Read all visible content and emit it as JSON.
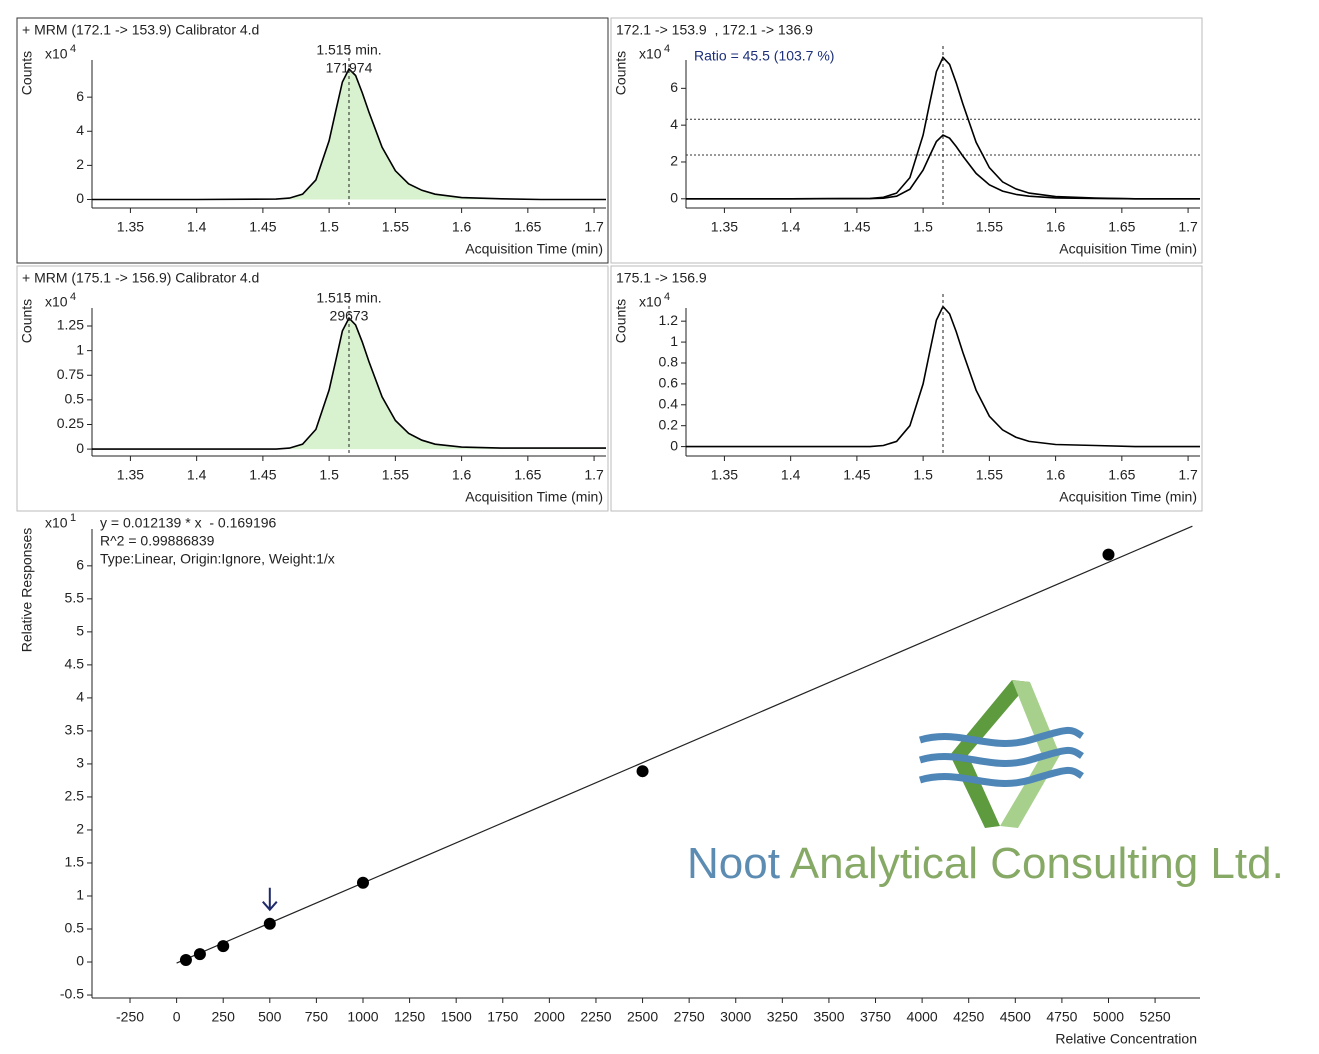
{
  "chart_data": [
    {
      "type": "line",
      "title": "+ MRM (172.1 -> 153.9) Calibrator 4.d",
      "y_label": "Counts",
      "y_multiplier_base": "x10",
      "y_multiplier_exponent": 4,
      "x_label": "Acquisition Time (min)",
      "xlim": [
        1.321,
        1.709
      ],
      "xticks": [
        1.35,
        1.4,
        1.45,
        1.5,
        1.55,
        1.6,
        1.65,
        1.7
      ],
      "ylim": [
        -0.5,
        9
      ],
      "yticks": [
        0,
        2,
        4,
        6
      ],
      "x": [
        1.321,
        1.4,
        1.46,
        1.47,
        1.48,
        1.49,
        1.5,
        1.505,
        1.51,
        1.515,
        1.52,
        1.525,
        1.53,
        1.54,
        1.55,
        1.56,
        1.57,
        1.58,
        1.6,
        1.63,
        1.66,
        1.709
      ],
      "series": [
        {
          "color": "#000000",
          "fill": "#d8f1cf",
          "values": [
            0,
            0,
            0.02,
            0.08,
            0.31,
            1.15,
            3.44,
            5.2,
            6.89,
            7.65,
            7.27,
            6.27,
            5.13,
            3.06,
            1.68,
            0.92,
            0.54,
            0.31,
            0.11,
            0.04,
            0,
            0
          ]
        }
      ],
      "rt": 1.515,
      "peak_label": "1.515 min.",
      "peak_area": 171974
    },
    {
      "type": "line",
      "title": "172.1 -> 153.9  , 172.1 -> 136.9",
      "y_label": "Counts",
      "y_multiplier_base": "x10",
      "y_multiplier_exponent": 4,
      "x_label": "Acquisition Time (min)",
      "xlim": [
        1.321,
        1.709
      ],
      "xticks": [
        1.35,
        1.4,
        1.45,
        1.5,
        1.55,
        1.6,
        1.65,
        1.7
      ],
      "ylim": [
        -0.5,
        8.3
      ],
      "yticks": [
        0,
        2,
        4,
        6
      ],
      "x": [
        1.321,
        1.4,
        1.46,
        1.47,
        1.48,
        1.49,
        1.5,
        1.505,
        1.51,
        1.515,
        1.52,
        1.525,
        1.53,
        1.54,
        1.55,
        1.56,
        1.57,
        1.58,
        1.6,
        1.63,
        1.66,
        1.709
      ],
      "series": [
        {
          "color": "#000000",
          "values": [
            0,
            0,
            0.02,
            0.08,
            0.31,
            1.15,
            3.46,
            5.22,
            6.91,
            7.68,
            7.3,
            6.3,
            5.15,
            3.07,
            1.69,
            0.92,
            0.54,
            0.31,
            0.12,
            0.04,
            0,
            0
          ]
        },
        {
          "color": "#000000",
          "values": [
            0,
            0,
            0.01,
            0.03,
            0.14,
            0.52,
            1.56,
            2.35,
            3.11,
            3.46,
            3.29,
            2.84,
            2.32,
            1.38,
            0.76,
            0.42,
            0.24,
            0.14,
            0.05,
            0.02,
            0,
            0
          ]
        }
      ],
      "rt": 1.515,
      "annotation": "Ratio = 45.5 (103.7 %)",
      "annotation_color": "#1c2f7a",
      "reference_lines": [
        4.32,
        2.38
      ]
    },
    {
      "type": "line",
      "title": "+ MRM (175.1 -> 156.9) Calibrator 4.d",
      "y_label": "Counts",
      "y_multiplier_base": "x10",
      "y_multiplier_exponent": 4,
      "x_label": "Acquisition Time (min)",
      "xlim": [
        1.321,
        1.709
      ],
      "xticks": [
        1.35,
        1.4,
        1.45,
        1.5,
        1.55,
        1.6,
        1.65,
        1.7
      ],
      "ylim": [
        -0.07,
        1.575
      ],
      "yticks": [
        0,
        0.25,
        0.5,
        0.75,
        1,
        1.25
      ],
      "x": [
        1.321,
        1.4,
        1.46,
        1.47,
        1.48,
        1.49,
        1.5,
        1.505,
        1.51,
        1.515,
        1.52,
        1.525,
        1.53,
        1.54,
        1.55,
        1.56,
        1.57,
        1.58,
        1.6,
        1.63,
        1.66,
        1.709
      ],
      "series": [
        {
          "color": "#000000",
          "fill": "#d8f1cf",
          "values": [
            0,
            0,
            0,
            0.01,
            0.05,
            0.2,
            0.6,
            0.9,
            1.2,
            1.33,
            1.26,
            1.09,
            0.89,
            0.53,
            0.29,
            0.16,
            0.09,
            0.05,
            0.02,
            0.01,
            0.01,
            0.01
          ]
        }
      ],
      "rt": 1.515,
      "peak_label": "1.515 min.",
      "peak_area": 29673
    },
    {
      "type": "line",
      "title": "175.1 -> 156.9",
      "y_label": "Counts",
      "y_multiplier_base": "x10",
      "y_multiplier_exponent": 4,
      "x_label": "Acquisition Time (min)",
      "xlim": [
        1.321,
        1.709
      ],
      "xticks": [
        1.35,
        1.4,
        1.45,
        1.5,
        1.55,
        1.6,
        1.65,
        1.7
      ],
      "ylim": [
        -0.09,
        1.46
      ],
      "yticks": [
        0,
        0.2,
        0.4,
        0.6,
        0.8,
        1,
        1.2
      ],
      "x": [
        1.321,
        1.4,
        1.46,
        1.47,
        1.48,
        1.49,
        1.5,
        1.505,
        1.51,
        1.515,
        1.52,
        1.525,
        1.53,
        1.54,
        1.55,
        1.56,
        1.57,
        1.58,
        1.6,
        1.63,
        1.66,
        1.709
      ],
      "series": [
        {
          "color": "#000000",
          "values": [
            0,
            0,
            0,
            0.01,
            0.05,
            0.2,
            0.6,
            0.91,
            1.21,
            1.34,
            1.27,
            1.1,
            0.9,
            0.54,
            0.29,
            0.16,
            0.09,
            0.05,
            0.02,
            0.01,
            0,
            0
          ]
        }
      ],
      "rt": 1.515
    },
    {
      "type": "scatter",
      "y_label": "Relative Responses",
      "y_multiplier_base": "x10",
      "y_multiplier_exponent": 1,
      "x_label": "Relative Concentration",
      "equation": [
        "y = 0.012139 * x  - 0.169196",
        "R^2 = 0.99886839",
        "Type:Linear, Origin:Ignore, Weight:1/x"
      ],
      "xlim": [
        -454,
        5491
      ],
      "xticks": [
        -250,
        0,
        250,
        500,
        750,
        1000,
        1250,
        1500,
        1750,
        2000,
        2250,
        2500,
        2750,
        3000,
        3250,
        3500,
        3750,
        4000,
        4250,
        4500,
        4750,
        5000,
        5250
      ],
      "ylim": [
        -0.545,
        6.77
      ],
      "yticks": [
        -0.5,
        0,
        0.5,
        1,
        1.5,
        2,
        2.5,
        3,
        3.5,
        4,
        4.5,
        5,
        5.5,
        6
      ],
      "x": [
        50,
        125,
        250,
        500,
        1000,
        2500,
        5000
      ],
      "values": [
        0.03,
        0.12,
        0.24,
        0.58,
        1.2,
        2.89,
        6.17
      ],
      "color": "#000000",
      "fit": {
        "x": [
          0,
          5450
        ],
        "y": [
          -0.017,
          6.6
        ]
      }
    }
  ],
  "logo": {
    "first_word": "Noot",
    "rest": "Analytical Consulting Ltd."
  }
}
